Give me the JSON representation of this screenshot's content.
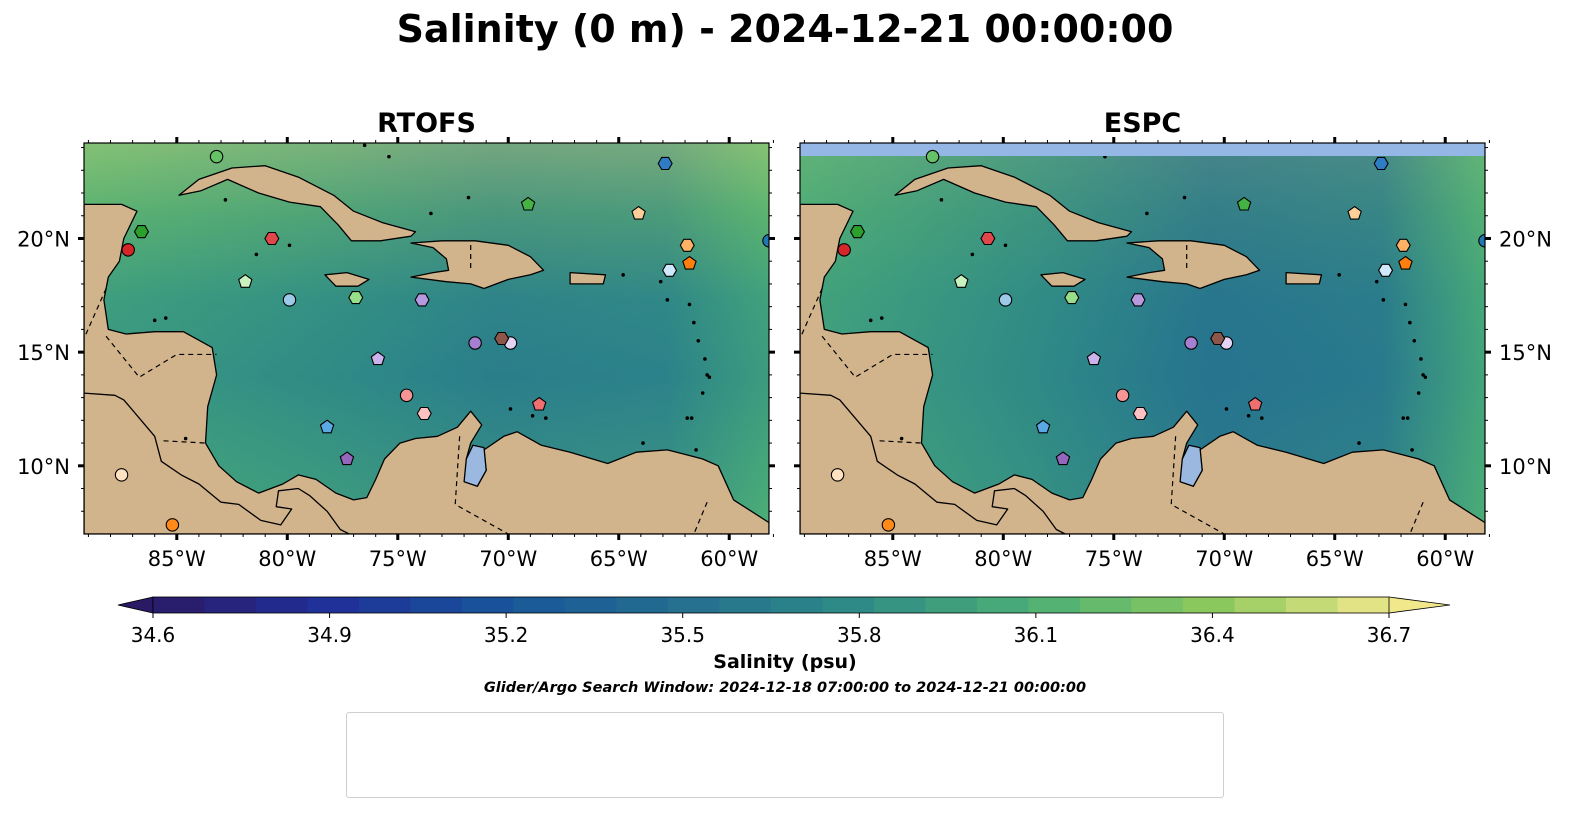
{
  "title": "Salinity (0 m) - 2024-12-21 00:00:00",
  "panels": [
    {
      "name": "RTOFS",
      "top_strip": false
    },
    {
      "name": "ESPC",
      "top_strip": true
    }
  ],
  "map": {
    "lon_ticks": [
      -85,
      -80,
      -75,
      -70,
      -65,
      -60
    ],
    "lon_tick_labels": [
      "85°W",
      "80°W",
      "75°W",
      "70°W",
      "65°W",
      "60°W"
    ],
    "lat_ticks": [
      10,
      15,
      20
    ],
    "lat_tick_labels": [
      "10°N",
      "15°N",
      "20°N"
    ],
    "colors": {
      "land": "#d2b48c",
      "lake": "#9bb8e0",
      "strip": "#94b7e6",
      "pacific": "#2a1f66"
    }
  },
  "colorbar": {
    "label": "Salinity (psu)",
    "min": 34.6,
    "max": 36.7,
    "ticks": [
      34.6,
      34.9,
      35.2,
      35.5,
      35.8,
      36.1,
      36.4,
      36.7
    ],
    "tick_labels": [
      "34.6",
      "34.9",
      "35.2",
      "35.5",
      "35.8",
      "36.1",
      "36.4",
      "36.7"
    ],
    "colormap": "haline"
  },
  "search_window": "Glider/Argo Search Window: 2024-12-18 07:00:00 to 2024-12-21 00:00:00",
  "floats": [
    {
      "id": "1902313",
      "marker": "circle",
      "color": "#1f77b4",
      "lon": -58.2,
      "lat": 19.9
    },
    {
      "id": "1902364",
      "marker": "hexagon",
      "color": "#2f7cc4",
      "lon": -62.9,
      "lat": 23.3
    },
    {
      "id": "1902522",
      "marker": "pentagon",
      "color": "#5aa9e6",
      "lon": -78.2,
      "lat": 11.7
    },
    {
      "id": "2903766",
      "marker": "circle",
      "color": "#9ecae9",
      "lon": -79.9,
      "lat": 17.3
    },
    {
      "id": "3902457",
      "marker": "hexagon",
      "color": "#cfe8fb",
      "lon": -62.7,
      "lat": 18.6
    },
    {
      "id": "4902113",
      "marker": "pentagon",
      "color": "#ff7f0e",
      "lon": -61.8,
      "lat": 18.9
    },
    {
      "id": "4902476",
      "marker": "circle",
      "color": "#ff8a1a",
      "lon": -85.2,
      "lat": 7.4
    },
    {
      "id": "4902609",
      "marker": "hexagon",
      "color": "#ffb266",
      "lon": -61.9,
      "lat": 19.7
    },
    {
      "id": "4903051",
      "marker": "pentagon",
      "color": "#ffcf99",
      "lon": -64.1,
      "lat": 21.1
    },
    {
      "id": "4903186",
      "marker": "circle",
      "color": "#ffe2c2",
      "lon": -87.5,
      "lat": 9.6
    },
    {
      "id": "4903250",
      "marker": "hexagon",
      "color": "#2ca02c",
      "lon": -86.6,
      "lat": 20.3
    },
    {
      "id": "4903276",
      "marker": "pentagon",
      "color": "#44b344",
      "lon": -69.1,
      "lat": 21.5
    },
    {
      "id": "4903354",
      "marker": "circle",
      "color": "#66c266",
      "lon": -83.2,
      "lat": 23.6
    },
    {
      "id": "4903558",
      "marker": "hexagon",
      "color": "#98df8a",
      "lon": -76.9,
      "lat": 17.4
    },
    {
      "id": "4903559",
      "marker": "pentagon",
      "color": "#c9f2c0",
      "lon": -81.9,
      "lat": 18.1
    },
    {
      "id": "4903562",
      "marker": "circle",
      "color": "#d62728",
      "lon": -87.2,
      "lat": 19.5
    },
    {
      "id": "4903563",
      "marker": "hexagon",
      "color": "#e0474a",
      "lon": -80.7,
      "lat": 20.0
    },
    {
      "id": "4903629",
      "marker": "pentagon",
      "color": "#ef6f70",
      "lon": -68.6,
      "lat": 12.7
    },
    {
      "id": "4903766",
      "marker": "circle",
      "color": "#f59595",
      "lon": -74.6,
      "lat": 13.1
    },
    {
      "id": "4903767",
      "marker": "hexagon",
      "color": "#ffc2c2",
      "lon": -73.8,
      "lat": 12.3
    },
    {
      "id": "4903768",
      "marker": "pentagon",
      "color": "#9467bd",
      "lon": -77.3,
      "lat": 10.3
    },
    {
      "id": "5906437",
      "marker": "circle",
      "color": "#a57fd0",
      "lon": -71.5,
      "lat": 15.4
    },
    {
      "id": "6903134",
      "marker": "hexagon",
      "color": "#b799e0",
      "lon": -73.9,
      "lat": 17.3
    },
    {
      "id": "6903135",
      "marker": "pentagon",
      "color": "#ccb3ec",
      "lon": -75.9,
      "lat": 14.7
    },
    {
      "id": "6903136",
      "marker": "circle",
      "color": "#e3d3f5",
      "lon": -69.9,
      "lat": 15.4
    },
    {
      "id": "6903137",
      "marker": "hexagon",
      "color": "#8c564b",
      "lon": -70.3,
      "lat": 15.6
    }
  ]
}
